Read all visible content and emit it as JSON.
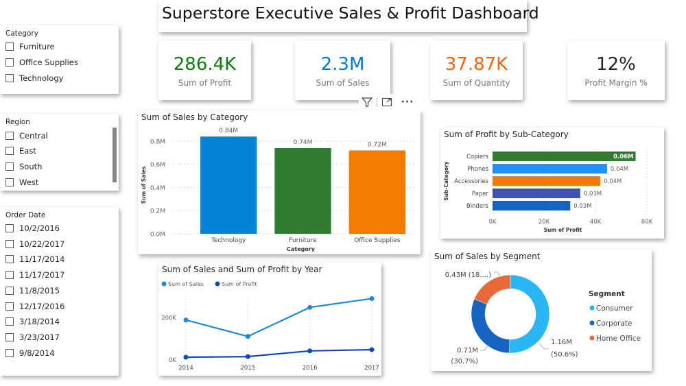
{
  "dashboard": {
    "title": "Superstore Executive Sales & Profit Dashboard"
  },
  "slicers": {
    "category": {
      "title": "Category",
      "items": [
        {
          "label": "Furniture",
          "checked": false
        },
        {
          "label": "Office Supplies",
          "checked": false
        },
        {
          "label": "Technology",
          "checked": false
        }
      ]
    },
    "region": {
      "title": "Region",
      "items": [
        {
          "label": "Central",
          "checked": false
        },
        {
          "label": "East",
          "checked": false
        },
        {
          "label": "South",
          "checked": false
        },
        {
          "label": "West",
          "checked": false
        }
      ]
    },
    "order_date": {
      "title": "Order Date",
      "items": [
        {
          "label": "10/2/2016",
          "checked": false
        },
        {
          "label": "10/22/2017",
          "checked": false
        },
        {
          "label": "11/17/2014",
          "checked": false
        },
        {
          "label": "11/17/2017",
          "checked": false
        },
        {
          "label": "11/8/2015",
          "checked": false
        },
        {
          "label": "12/17/2016",
          "checked": false
        },
        {
          "label": "3/18/2014",
          "checked": false
        },
        {
          "label": "3/23/2017",
          "checked": false
        },
        {
          "label": "9/8/2014",
          "checked": false
        }
      ]
    }
  },
  "kpis": [
    {
      "value": "286.4K",
      "label": "Sum of Profit",
      "color": "#107C10"
    },
    {
      "value": "2.3M",
      "label": "Sum of Sales",
      "color": "#0078D4"
    },
    {
      "value": "37.87K",
      "label": "Sum of Quantity",
      "color": "#F7630C"
    },
    {
      "value": "12%",
      "label": "Profit Margin %",
      "color": "#252423"
    }
  ],
  "visual_header": {
    "icons": [
      "filter-icon",
      "focus-mode-icon",
      "more-options-icon"
    ],
    "more_glyph": "···"
  },
  "chart_data": [
    {
      "id": "sales_by_category",
      "type": "bar",
      "title": "Sum of Sales by Category",
      "xlabel": "Category",
      "ylabel": "Sum of Sales",
      "categories": [
        "Technology",
        "Furniture",
        "Office Supplies"
      ],
      "values": [
        0.84,
        0.74,
        0.72
      ],
      "data_labels": [
        "0.84M",
        "0.74M",
        "0.72M"
      ],
      "colors": [
        "#0683D4",
        "#2E7D32",
        "#F57C00"
      ],
      "yticks": [
        "0.0M",
        "0.2M",
        "0.4M",
        "0.6M",
        "0.8M"
      ],
      "ytick_values": [
        0,
        0.2,
        0.4,
        0.6,
        0.8
      ],
      "ylim": [
        0,
        0.9
      ],
      "unit": "M",
      "grid": true
    },
    {
      "id": "profit_by_subcategory",
      "type": "bar",
      "orientation": "horizontal",
      "title": "Sum of Profit by Sub-Category",
      "xlabel": "Sum of Profit",
      "ylabel": "Sub-Category",
      "categories": [
        "Copiers",
        "Phones",
        "Accessories",
        "Paper",
        "Binders"
      ],
      "values": [
        55600,
        44500,
        41900,
        34100,
        30200
      ],
      "data_labels": [
        "0.06M",
        "0.04M",
        "0.04M",
        "0.03M",
        "0.03M"
      ],
      "colors": [
        "#2E7D32",
        "#1E90FF",
        "#F57C00",
        "#3F51B5",
        "#1565C0"
      ],
      "xticks": [
        "0K",
        "20K",
        "40K",
        "60K"
      ],
      "xtick_values": [
        0,
        20000,
        40000,
        60000
      ],
      "xlim": [
        0,
        60000
      ],
      "grid": true
    },
    {
      "id": "sales_profit_by_year",
      "type": "line",
      "title": "Sum of Sales and Sum of Profit by Year",
      "x": [
        "2014",
        "2015",
        "2016",
        "2017"
      ],
      "series": [
        {
          "name": "Sum of Sales",
          "values": [
            190000,
            112000,
            250000,
            292000
          ],
          "color": "#1E88D8"
        },
        {
          "name": "Sum of Profit",
          "values": [
            13000,
            16000,
            43000,
            49000
          ],
          "color": "#0D47C1"
        }
      ],
      "yticks": [
        "0K",
        "200K"
      ],
      "ytick_values": [
        0,
        200000
      ],
      "ylim": [
        0,
        300000
      ],
      "legend": "top-left",
      "grid": true
    },
    {
      "id": "sales_by_segment",
      "type": "pie",
      "donut": true,
      "title": "Sum of Sales by Segment",
      "legend_title": "Segment",
      "legend": "right",
      "slices": [
        {
          "name": "Consumer",
          "value": 1.16,
          "percent": 50.6,
          "label": "1.16M",
          "label2": "(50.6%)",
          "color": "#29B6F6"
        },
        {
          "name": "Corporate",
          "value": 0.71,
          "percent": 30.7,
          "label": "0.71M",
          "label2": "(30.7%)",
          "color": "#1565C0"
        },
        {
          "name": "Home Office",
          "value": 0.43,
          "percent": 18.7,
          "label": "0.43M (18....)",
          "label2": "",
          "color": "#E8693A"
        }
      ]
    }
  ]
}
